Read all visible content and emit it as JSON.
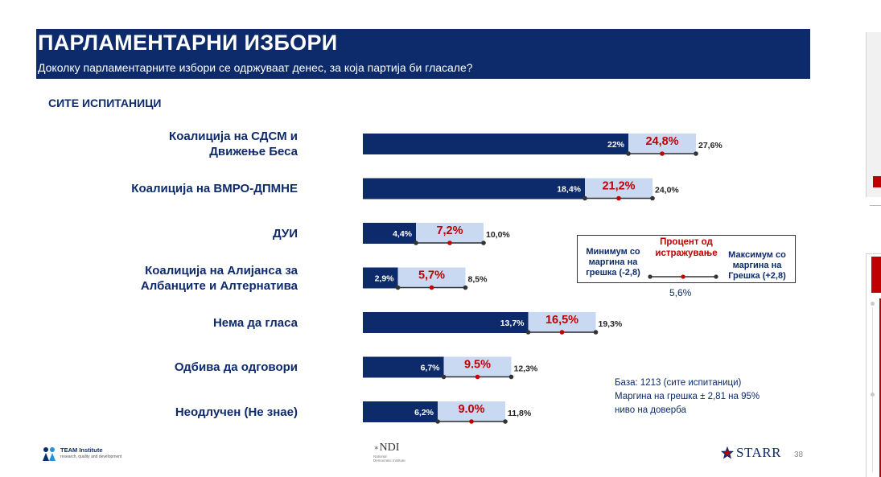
{
  "header": {
    "title": "ПАРЛАМЕНТАРНИ ИЗБОРИ",
    "subtitle": "Доколку парламентарните избори се одржуваат денес, за која партија би гласале?"
  },
  "section_label": "СИТЕ ИСПИТАНИЦИ",
  "chart_data": {
    "type": "bar",
    "orientation": "horizontal",
    "title": "ПАРЛАМЕНТАРНИ ИЗБОРИ",
    "xlim": [
      0,
      30
    ],
    "grid": false,
    "categories": [
      [
        "Коалиција на СДСМ и",
        "Движење Беса"
      ],
      [
        "Коалиција на ВМРО-ДПМНЕ"
      ],
      [
        "ДУИ"
      ],
      [
        "Коалиција на Алијанса за",
        "Албанците и Алтернатива"
      ],
      [
        "Нема да гласа"
      ],
      [
        "Одбива да одговори"
      ],
      [
        "Неодлучен (Не знае)"
      ]
    ],
    "series": [
      {
        "name": "Минимум со маргина на грешка (-2,8)",
        "values": [
          22.0,
          18.4,
          4.4,
          2.9,
          13.7,
          6.7,
          6.2
        ],
        "labels": [
          "22%",
          "18,4%",
          "4,4%",
          "2,9%",
          "13,7%",
          "6,7%",
          "6,2%"
        ],
        "color": "#0d2b6b"
      },
      {
        "name": "Процент од истражување",
        "values": [
          24.8,
          21.2,
          7.2,
          5.7,
          16.5,
          9.5,
          9.0
        ],
        "labels": [
          "24,8%",
          "21,2%",
          "7,2%",
          "5,7%",
          "16,5%",
          "9.5%",
          "9.0%"
        ],
        "color": "#c00000"
      },
      {
        "name": "Максимум со маргина на грешка (+2,8)",
        "values": [
          27.6,
          24.0,
          10.0,
          8.5,
          19.3,
          12.3,
          11.8
        ],
        "labels": [
          "27,6%",
          "24,0%",
          "10,0%",
          "8,5%",
          "19,3%",
          "12,3%",
          "11,8%"
        ],
        "color": "#c9d9f2"
      }
    ]
  },
  "legend": {
    "min_label": "Минимум со маргина на грешка (-2,8)",
    "mid_label": "Процент од истражување",
    "max_label": "Максимум со маргина на Грешка (+2,8)",
    "value": "5,6%"
  },
  "footnote": {
    "line1": "База: 1213 (сите испитаници)",
    "line2": "Маргина на грешка  ± 2,81  на 95%",
    "line3": "ниво на доверба"
  },
  "logos": {
    "team": "TEAM Institute",
    "team_sub": "research, quality and development",
    "ndi": "NDI",
    "ndi_sub": "National Democratic Institute",
    "starr": "STARR"
  },
  "page_number": "38",
  "colors": {
    "navy": "#0d2b6b",
    "red": "#c00000",
    "light_blue": "#c9d9f2"
  }
}
